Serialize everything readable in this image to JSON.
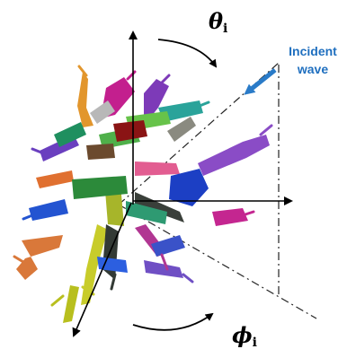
{
  "labels": {
    "theta_symbol": "θ",
    "theta_subscript": "i",
    "phi_symbol": "ϕ",
    "phi_subscript": "i",
    "incident_line1": "Incident",
    "incident_line2": "wave"
  },
  "colors": {
    "axis": "#000000",
    "incident_arrow": "#2a7bc8",
    "incident_text": "#1f6fbf",
    "dash_line": "#222222"
  },
  "icons": {
    "particle": "snowflake-aggregate-icon"
  }
}
